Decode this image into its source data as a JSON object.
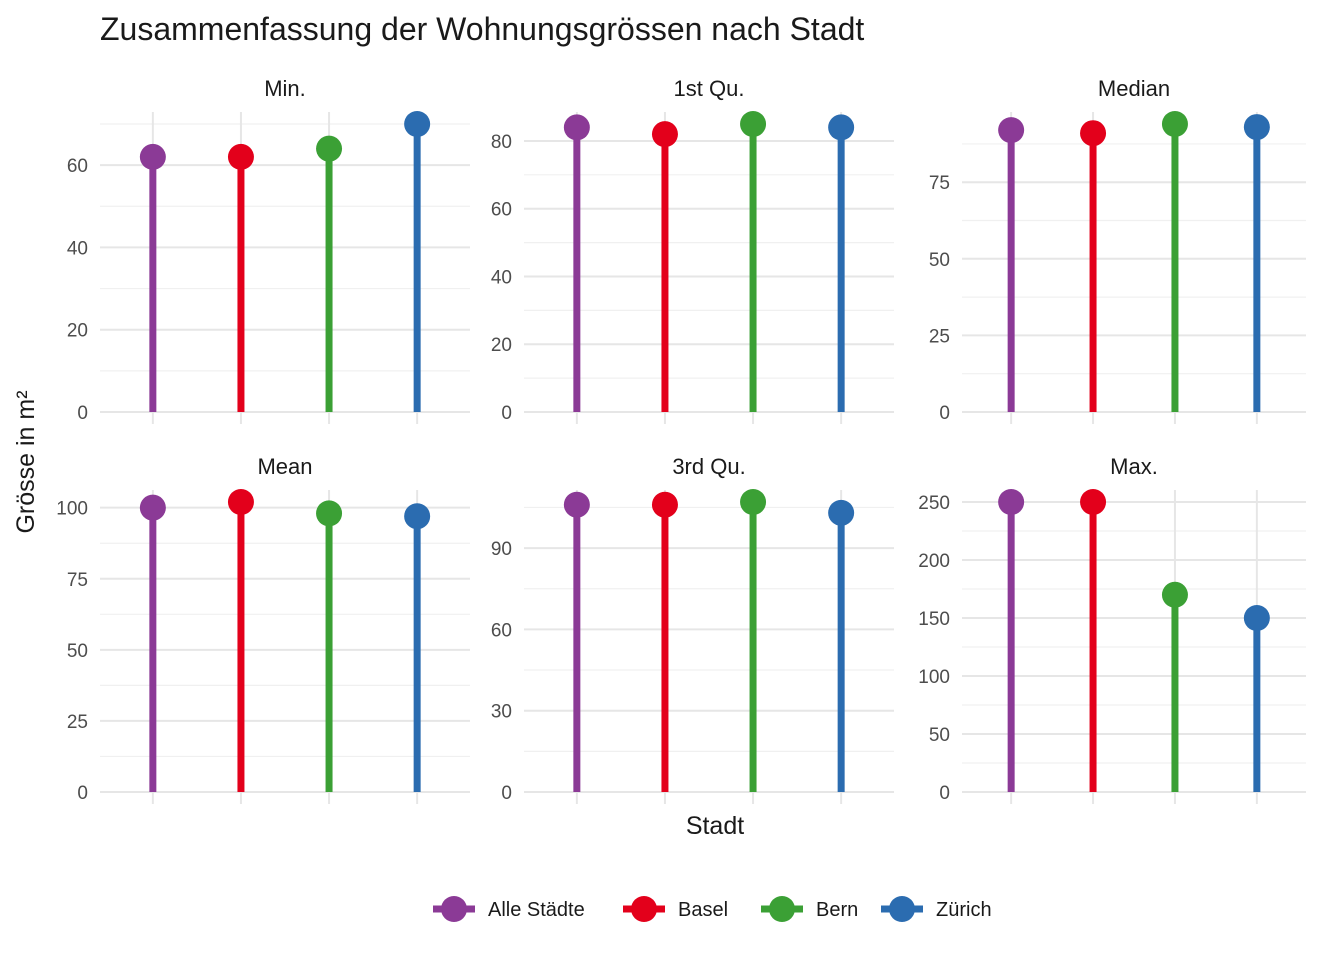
{
  "chart_data": {
    "type": "lollipop",
    "title": "Zusammenfassung der Wohnungsgrössen nach Stadt",
    "xlabel": "Stadt",
    "ylabel": "Grösse in m²",
    "categories": [
      "Alle Städte",
      "Basel",
      "Bern",
      "Zürich"
    ],
    "colors": [
      "#8B3A96",
      "#E3001B",
      "#3BA035",
      "#2B6CB0"
    ],
    "legend": {
      "position": "bottom",
      "entries": [
        "Alle Städte",
        "Basel",
        "Bern",
        "Zürich"
      ]
    },
    "grid": true,
    "panels": [
      {
        "name": "Min.",
        "values": [
          62,
          62,
          64,
          70
        ],
        "ylim": [
          0,
          70
        ],
        "ticks": [
          0,
          20,
          40,
          60
        ]
      },
      {
        "name": "1st Qu.",
        "values": [
          84,
          82,
          85,
          84
        ],
        "ylim": [
          0,
          85
        ],
        "ticks": [
          0,
          20,
          40,
          60,
          80
        ]
      },
      {
        "name": "Median",
        "values": [
          92,
          91,
          94,
          93
        ],
        "ylim": [
          0,
          94
        ],
        "ticks": [
          0,
          25,
          50,
          75
        ]
      },
      {
        "name": "Mean",
        "values": [
          100,
          102,
          98,
          97
        ],
        "ylim": [
          0,
          102
        ],
        "ticks": [
          0,
          25,
          50,
          75,
          100
        ]
      },
      {
        "name": "3rd Qu.",
        "values": [
          106,
          106,
          107,
          103
        ],
        "ylim": [
          0,
          107
        ],
        "ticks": [
          0,
          30,
          60,
          90
        ]
      },
      {
        "name": "Max.",
        "values": [
          250,
          250,
          170,
          150
        ],
        "ylim": [
          0,
          250
        ],
        "ticks": [
          0,
          50,
          100,
          150,
          200,
          250
        ]
      }
    ]
  }
}
